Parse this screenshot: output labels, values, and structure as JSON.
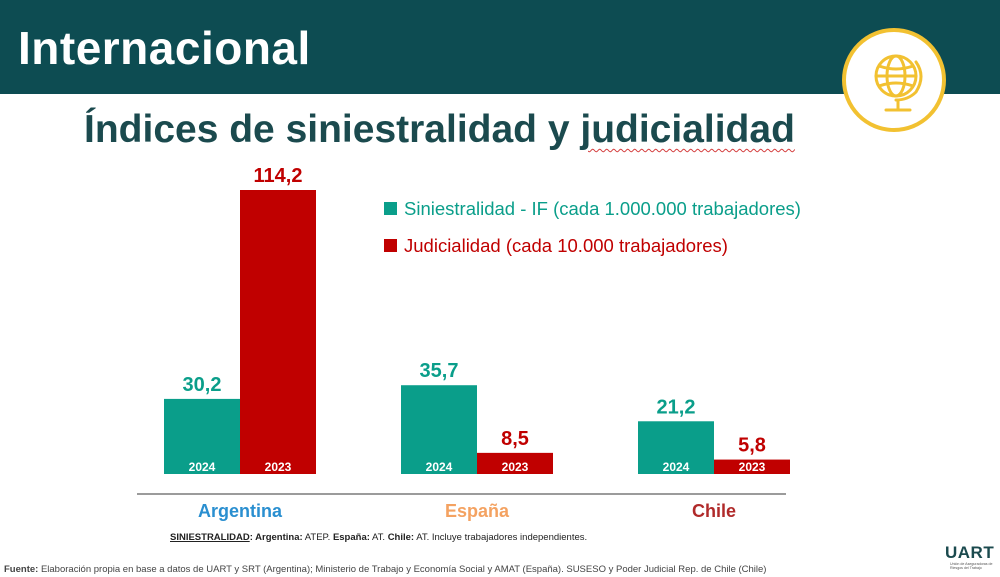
{
  "header": {
    "title": "Internacional",
    "badge_icon": "globe-icon"
  },
  "subtitle": {
    "part1": "Índices de siniestralidad y ",
    "part2": "judicialidad"
  },
  "colors": {
    "header_bg": "#0d4c52",
    "siniestralidad": "#0a9e8a",
    "judicialidad": "#c00000",
    "argentina": "#2a8fd0",
    "espana": "#f4a261",
    "chile": "#b02a2a",
    "badge_ring": "#f2c131"
  },
  "chart_data": {
    "type": "bar",
    "title": "Índices de siniestralidad y judicialidad",
    "categories": [
      "Argentina",
      "España",
      "Chile"
    ],
    "series": [
      {
        "name": "Siniestralidad - IF (cada 1.000.000 trabajadores)",
        "year_labels": [
          "2024",
          "2024",
          "2024"
        ],
        "values": [
          30.2,
          35.7,
          21.2
        ],
        "display": [
          "30,2",
          "35,7",
          "21,2"
        ]
      },
      {
        "name": "Judicialidad (cada 10.000 trabajadores)",
        "year_labels": [
          "2023",
          "2023",
          "2023"
        ],
        "values": [
          114.2,
          8.5,
          5.8
        ],
        "display": [
          "114,2",
          "8,5",
          "5,8"
        ]
      }
    ],
    "ylim": [
      0,
      114.2
    ],
    "legend_position": "top-right",
    "grid": false
  },
  "note": {
    "label": "SINIESTRALIDAD",
    "sep": ": ",
    "ar_label": "Argentina:",
    "ar_val": " ATEP. ",
    "es_label": "España:",
    "es_val": " AT. ",
    "cl_label": "Chile:",
    "cl_val": " AT. Incluye trabajadores independientes."
  },
  "source": {
    "label": "Fuente:",
    "text": " Elaboración propia en base a datos de UART y SRT (Argentina); Ministerio de Trabajo y Economía Social y AMAT (España). SUSESO y Poder Judicial Rep. de Chile (Chile)"
  },
  "logo": {
    "word": "UART",
    "subtitle": "Unión de Aseguradoras de Riesgos del Trabajo"
  }
}
